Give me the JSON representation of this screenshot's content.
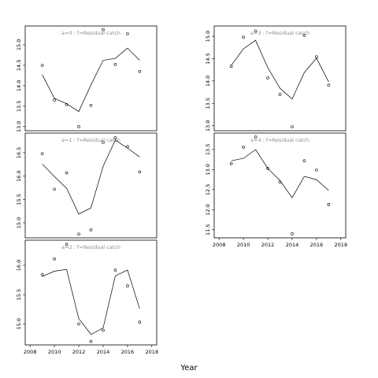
{
  "xlabel": "Year",
  "chart_data": [
    {
      "type": "line",
      "title": "a=0 : f=Residual catch",
      "color": "#000000",
      "x": [
        2009,
        2010,
        2011,
        2012,
        2013,
        2014,
        2015,
        2016,
        2017
      ],
      "series": [
        {
          "style": "points",
          "values": [
            14.5,
            13.65,
            13.54,
            13.0,
            13.52,
            15.37,
            14.52,
            15.27,
            14.35
          ]
        },
        {
          "style": "line",
          "values": [
            14.27,
            13.69,
            13.56,
            13.37,
            14.02,
            14.62,
            14.67,
            14.92,
            14.62
          ]
        }
      ],
      "xlim": [
        2007.6,
        2018.4
      ],
      "ylim": [
        12.9,
        15.46
      ],
      "yticks": [
        {
          "value": 13,
          "label": "13.0"
        },
        13.5,
        {
          "value": 14,
          "label": "14.0"
        },
        14.5,
        {
          "value": 15,
          "label": "15.0"
        }
      ]
    },
    {
      "type": "line",
      "title": "a=1 : f=Residual catch",
      "color": "#000000",
      "x": [
        2009,
        2010,
        2011,
        2012,
        2013,
        2014,
        2015,
        2016,
        2017
      ],
      "series": [
        {
          "style": "points",
          "values": [
            16.48,
            15.72,
            16.07,
            14.76,
            14.85,
            16.72,
            16.82,
            16.63,
            16.09
          ]
        },
        {
          "style": "line",
          "values": [
            16.26,
            15.99,
            15.74,
            15.19,
            15.32,
            16.21,
            16.77,
            16.6,
            16.41
          ]
        }
      ],
      "xlim": [
        2007.6,
        2018.4
      ],
      "ylim": [
        14.68,
        16.92
      ],
      "yticks": [
        {
          "value": 15,
          "label": "15.0"
        },
        15.5,
        {
          "value": 16,
          "label": "16.0"
        },
        16.5
      ]
    },
    {
      "type": "line",
      "title": "a=2 : f=Residual catch",
      "color": "#000000",
      "x": [
        2009,
        2010,
        2011,
        2012,
        2013,
        2014,
        2015,
        2016,
        2017
      ],
      "series": [
        {
          "style": "points",
          "values": [
            15.84,
            16.11,
            16.36,
            15.0,
            14.7,
            14.89,
            15.92,
            15.65,
            15.03
          ]
        },
        {
          "style": "line",
          "values": [
            15.81,
            15.9,
            15.93,
            15.09,
            14.82,
            14.93,
            15.82,
            15.92,
            15.26
          ]
        }
      ],
      "xlim": [
        2007.6,
        2018.4
      ],
      "ylim": [
        14.64,
        16.43
      ],
      "yticks": [
        {
          "value": 15,
          "label": "15.0"
        },
        15.5,
        {
          "value": 16,
          "label": "16.0"
        }
      ],
      "xticks": [
        2008,
        2010,
        2012,
        2014,
        2016,
        2018
      ]
    },
    {
      "type": "line",
      "title": "a=3 : f=Residual catch",
      "color": "#000000",
      "x": [
        2009,
        2010,
        2011,
        2012,
        2013,
        2014,
        2015,
        2016,
        2017
      ],
      "series": [
        {
          "style": "points",
          "values": [
            14.33,
            14.98,
            15.12,
            14.07,
            13.7,
            12.98,
            15.02,
            14.54,
            13.91
          ]
        },
        {
          "style": "line",
          "values": [
            14.35,
            14.72,
            14.91,
            14.3,
            13.84,
            13.6,
            14.19,
            14.51,
            13.98
          ]
        }
      ],
      "xlim": [
        2007.6,
        2018.4
      ],
      "ylim": [
        12.89,
        15.23
      ],
      "yticks": [
        {
          "value": 13,
          "label": "13.0"
        },
        13.5,
        {
          "value": 14,
          "label": "14.0"
        },
        14.5,
        {
          "value": 15,
          "label": "15.0"
        }
      ]
    },
    {
      "type": "line",
      "title": "a=4 : f=Residual catch",
      "color": "#000000",
      "x": [
        2009,
        2010,
        2011,
        2012,
        2013,
        2014,
        2015,
        2016,
        2017
      ],
      "series": [
        {
          "style": "points",
          "values": [
            13.15,
            13.56,
            13.81,
            13.03,
            12.69,
            11.4,
            13.22,
            12.99,
            12.13
          ]
        },
        {
          "style": "line",
          "values": [
            13.22,
            13.28,
            13.5,
            13.03,
            12.73,
            12.3,
            12.83,
            12.75,
            12.48
          ]
        }
      ],
      "xlim": [
        2007.6,
        2018.4
      ],
      "ylim": [
        11.3,
        13.91
      ],
      "yticks": [
        11.5,
        {
          "value": 12,
          "label": "12.0"
        },
        12.5,
        {
          "value": 13,
          "label": "13.0"
        },
        13.5
      ],
      "xticks": [
        2008,
        2010,
        2012,
        2014,
        2016,
        2018
      ]
    }
  ]
}
